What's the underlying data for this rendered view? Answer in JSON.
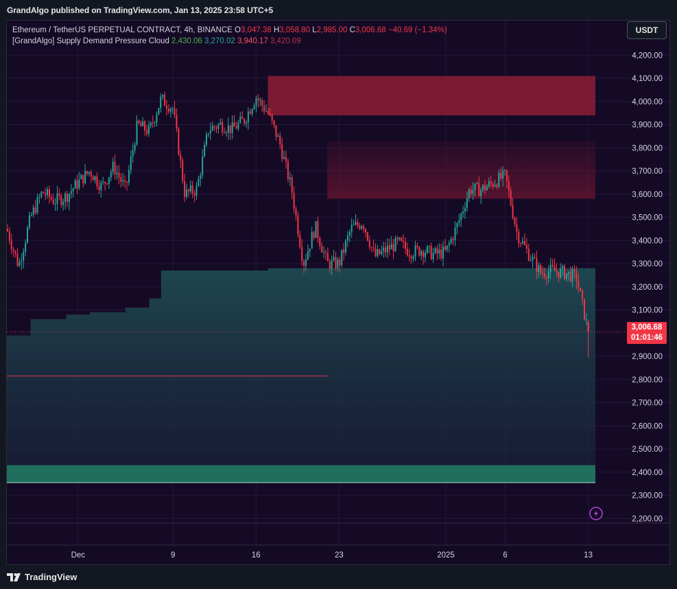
{
  "header": {
    "published": "GrandAlgo published on TradingView.com, Jan 13, 2025 23:58 UTC+5"
  },
  "legend": {
    "symbol": "Ethereum / TetherUS PERPETUAL CONTRACT, 4h, BINANCE",
    "o_label": "O",
    "o_value": "3,047.38",
    "h_label": "H",
    "h_value": "3,058.80",
    "l_label": "L",
    "l_value": "2,985.00",
    "c_label": "C",
    "c_value": "3,006.68",
    "change": "−40.69 (−1.34%)",
    "indicator": "[GrandAlgo] Supply Demand Pressure Cloud",
    "ind_v1": "2,430.06",
    "ind_v2": "3,270.02",
    "ind_v3": "3,940.17",
    "ind_v4": "3,420.09"
  },
  "currency_button": "USDT",
  "last_price": {
    "price": "3,006.68",
    "countdown": "01:01:46"
  },
  "footer": {
    "brand": "TradingView"
  },
  "colors": {
    "background": "#150a26",
    "up": "#26a69a",
    "down": "#f23645",
    "supply_zone": "#7a1a33",
    "demand_zone": "#1f6f5c",
    "demand_cloud": "#1d3a45"
  },
  "chart_data": {
    "type": "candlestick",
    "ylim": [
      2180,
      4260
    ],
    "y_ticks": [
      "4,200.00",
      "4,100.00",
      "4,000.00",
      "3,900.00",
      "3,800.00",
      "3,700.00",
      "3,600.00",
      "3,500.00",
      "3,400.00",
      "3,300.00",
      "3,200.00",
      "3,100.00",
      "3,000.00",
      "2,900.00",
      "2,800.00",
      "2,700.00",
      "2,600.00",
      "2,500.00",
      "2,400.00",
      "2,300.00",
      "2,200.00"
    ],
    "y_tick_values": [
      4200,
      4100,
      4000,
      3900,
      3800,
      3700,
      3600,
      3500,
      3400,
      3300,
      3200,
      3100,
      3000,
      2900,
      2800,
      2700,
      2600,
      2500,
      2400,
      2300,
      2200
    ],
    "x_ticks": [
      "Dec",
      "9",
      "16",
      "23",
      "2025",
      "6",
      "13"
    ],
    "x_tick_dates": [
      "2024-12-01",
      "2024-12-09",
      "2024-12-16",
      "2024-12-23",
      "2025-01-01",
      "2025-01-06",
      "2025-01-13"
    ],
    "date_range": [
      "2024-11-25",
      "2025-01-13"
    ],
    "close_path": [
      [
        "2024-11-25",
        3450
      ],
      [
        "2024-11-26",
        3290
      ],
      [
        "2024-11-27",
        3500
      ],
      [
        "2024-11-28",
        3610
      ],
      [
        "2024-11-29",
        3570
      ],
      [
        "2024-11-30",
        3590
      ],
      [
        "2024-12-01",
        3650
      ],
      [
        "2024-12-02",
        3700
      ],
      [
        "2024-12-03",
        3630
      ],
      [
        "2024-12-04",
        3720
      ],
      [
        "2024-12-05",
        3620
      ],
      [
        "2024-12-06",
        3900
      ],
      [
        "2024-12-07",
        3870
      ],
      [
        "2024-12-08",
        4010
      ],
      [
        "2024-12-09",
        3970
      ],
      [
        "2024-12-10",
        3600
      ],
      [
        "2024-12-11",
        3620
      ],
      [
        "2024-12-12",
        3880
      ],
      [
        "2024-12-13",
        3900
      ],
      [
        "2024-12-14",
        3880
      ],
      [
        "2024-12-15",
        3920
      ],
      [
        "2024-12-16",
        4020
      ],
      [
        "2024-12-17",
        3950
      ],
      [
        "2024-12-18",
        3820
      ],
      [
        "2024-12-19",
        3620
      ],
      [
        "2024-12-20",
        3300
      ],
      [
        "2024-12-21",
        3460
      ],
      [
        "2024-12-22",
        3300
      ],
      [
        "2024-12-23",
        3300
      ],
      [
        "2024-12-24",
        3450
      ],
      [
        "2024-12-25",
        3480
      ],
      [
        "2024-12-26",
        3330
      ],
      [
        "2024-12-27",
        3360
      ],
      [
        "2024-12-28",
        3390
      ],
      [
        "2024-12-29",
        3350
      ],
      [
        "2024-12-30",
        3360
      ],
      [
        "2024-12-31",
        3340
      ],
      [
        "2025-01-01",
        3350
      ],
      [
        "2025-01-02",
        3470
      ],
      [
        "2025-01-03",
        3620
      ],
      [
        "2025-01-04",
        3620
      ],
      [
        "2025-01-05",
        3650
      ],
      [
        "2025-01-06",
        3680
      ],
      [
        "2025-01-07",
        3430
      ],
      [
        "2025-01-08",
        3340
      ],
      [
        "2025-01-09",
        3260
      ],
      [
        "2025-01-10",
        3270
      ],
      [
        "2025-01-11",
        3260
      ],
      [
        "2025-01-12",
        3240
      ],
      [
        "2025-01-13",
        3006.68
      ]
    ],
    "supply_zone": {
      "from": "2024-12-17",
      "to": "2025-01-13",
      "top": 4110,
      "bottom": 3940
    },
    "supply_cloud": {
      "from": "2024-12-22",
      "to": "2025-01-13",
      "top": 3830,
      "bottom": 3580
    },
    "demand_zone": {
      "from": "2024-11-25",
      "to": "2025-01-13",
      "top": 2430,
      "bottom": 2355
    },
    "demand_cloud_top": [
      [
        "2024-11-25",
        2990
      ],
      [
        "2024-11-27",
        3060
      ],
      [
        "2024-11-30",
        3080
      ],
      [
        "2024-12-02",
        3090
      ],
      [
        "2024-12-05",
        3110
      ],
      [
        "2024-12-07",
        3150
      ],
      [
        "2024-12-08",
        3270
      ],
      [
        "2024-12-16",
        3270
      ],
      [
        "2024-12-17",
        3280
      ],
      [
        "2025-01-13",
        3280
      ]
    ],
    "support_line": {
      "from": "2024-11-25",
      "to": "2024-12-22",
      "value": 2815
    },
    "last_price": 3006.68
  }
}
